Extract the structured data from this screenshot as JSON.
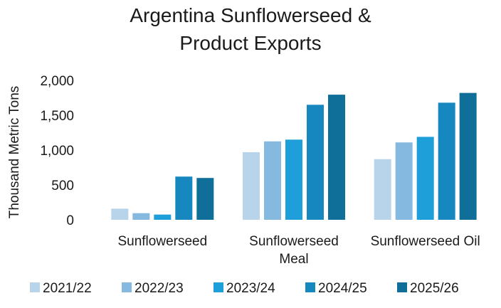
{
  "chart_data": {
    "type": "bar",
    "title": "Argentina Sunflowerseed & Product Exports",
    "title_lines": [
      "Argentina Sunflowerseed &",
      "Product Exports"
    ],
    "ylabel": "Thousand Metric Tons",
    "xlabel": "",
    "ylim": [
      0,
      2000
    ],
    "yticks": [
      0,
      500,
      1000,
      1500,
      2000
    ],
    "ytick_labels": [
      "0",
      "500",
      "1,000",
      "1,500",
      "2,000"
    ],
    "grid": false,
    "legend_position": "bottom",
    "categories": [
      "Sunflowerseed",
      "Sunflowerseed Meal",
      "Sunflowerseed Oil"
    ],
    "category_label_lines": [
      [
        "Sunflowerseed"
      ],
      [
        "Sunflowerseed",
        "Meal"
      ],
      [
        "Sunflowerseed Oil"
      ]
    ],
    "series": [
      {
        "name": "2021/22",
        "color": "#b8d4ea",
        "values": [
          160,
          970,
          870
        ]
      },
      {
        "name": "2022/23",
        "color": "#86b9e0",
        "values": [
          95,
          1125,
          1110
        ]
      },
      {
        "name": "2023/24",
        "color": "#1f9fd9",
        "values": [
          75,
          1150,
          1190
        ]
      },
      {
        "name": "2024/25",
        "color": "#1687bf",
        "values": [
          620,
          1650,
          1680
        ]
      },
      {
        "name": "2025/26",
        "color": "#0f6f99",
        "values": [
          600,
          1795,
          1820
        ]
      }
    ]
  }
}
